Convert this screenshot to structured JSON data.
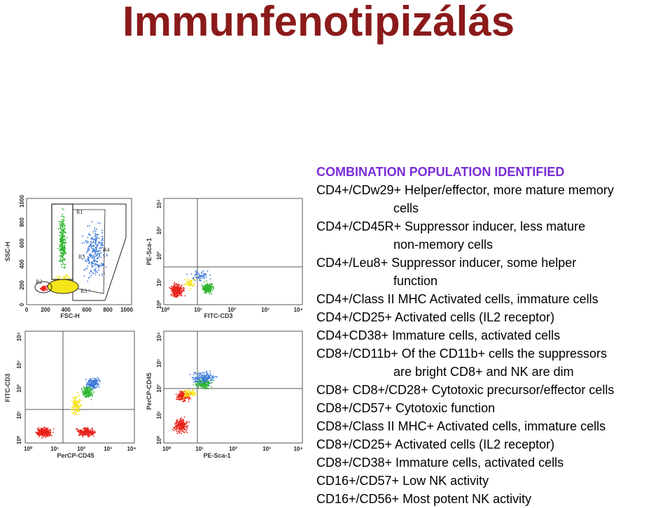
{
  "title": "Immunfenotipizálás",
  "table": {
    "heading": "COMBINATION POPULATION IDENTIFIED",
    "lines": [
      {
        "text": "CD4+/CDw29+ Helper/effector, more mature memory",
        "indent": false
      },
      {
        "text": "cells",
        "indent": true
      },
      {
        "text": "CD4+/CD45R+ Suppressor inducer, less mature",
        "indent": false
      },
      {
        "text": "non-memory cells",
        "indent": true
      },
      {
        "text": "CD4+/Leu8+ Suppressor inducer, some helper",
        "indent": false
      },
      {
        "text": "function",
        "indent": true
      },
      {
        "text": "CD4+/Class II MHC Activated cells, immature cells",
        "indent": false
      },
      {
        "text": "CD4+/CD25+ Activated cells (IL2 receptor)",
        "indent": false
      },
      {
        "text": "CD4+CD38+ Immature cells, activated cells",
        "indent": false
      },
      {
        "text": "CD8+/CD11b+ Of the CD11b+ cells the suppressors",
        "indent": false
      },
      {
        "text": "are bright CD8+ and NK are dim",
        "indent": true
      },
      {
        "text": "CD8+ CD8+/CD28+ Cytotoxic precursor/effector cells",
        "indent": false
      },
      {
        "text": "CD8+/CD57+ Cytotoxic function",
        "indent": false
      },
      {
        "text": "CD8+/Class II MHC+ Activated cells, immature cells",
        "indent": false
      },
      {
        "text": "CD8+/CD25+ Activated cells (IL2 receptor)",
        "indent": false
      },
      {
        "text": "CD8+/CD38+ Immature cells, activated cells",
        "indent": false
      },
      {
        "text": "CD16+/CD57+ Low NK activity",
        "indent": false
      },
      {
        "text": "CD16+/CD56+ Most potent NK activity",
        "indent": false
      }
    ]
  },
  "plots": {
    "p1": {
      "xlabel": "FSC-H",
      "ylabel": "SSC-H",
      "xticks": [
        "0",
        "200",
        "400",
        "600",
        "800",
        "1000"
      ],
      "yticks": [
        "1000",
        "800",
        "600",
        "400",
        "200",
        "0"
      ],
      "gates": [
        "R1",
        "R2",
        "R3",
        "R4",
        "R5"
      ]
    },
    "p2": {
      "xlabel": "FITC-CD3",
      "ylabel": "PE-Sca-1",
      "xticks": [
        "10⁰",
        "10¹",
        "10²",
        "10³",
        "10⁴"
      ],
      "yticks": [
        "10⁴",
        "10³",
        "10²",
        "10¹",
        "10⁰"
      ]
    },
    "p3": {
      "xlabel": "PerCP-CD45",
      "ylabel": "FITC-CD3",
      "xticks": [
        "10⁰",
        "10¹",
        "10²",
        "10³",
        "10⁴"
      ],
      "yticks": [
        "10⁴",
        "10³",
        "10²",
        "10¹",
        "10⁰"
      ]
    },
    "p4": {
      "xlabel": "PE-Sca-1",
      "ylabel": "PerCP-CD45",
      "xticks": [
        "10⁰",
        "10¹",
        "10²",
        "10³",
        "10⁴"
      ],
      "yticks": [
        "10⁴",
        "10³",
        "10²",
        "10¹",
        "10⁰"
      ]
    }
  },
  "colors": {
    "title": "#8b1a1a",
    "heading": "#7b2cd6",
    "red": "#e8221a",
    "green": "#2fb52f",
    "blue": "#3a78d8",
    "yellow": "#f6e41a"
  }
}
